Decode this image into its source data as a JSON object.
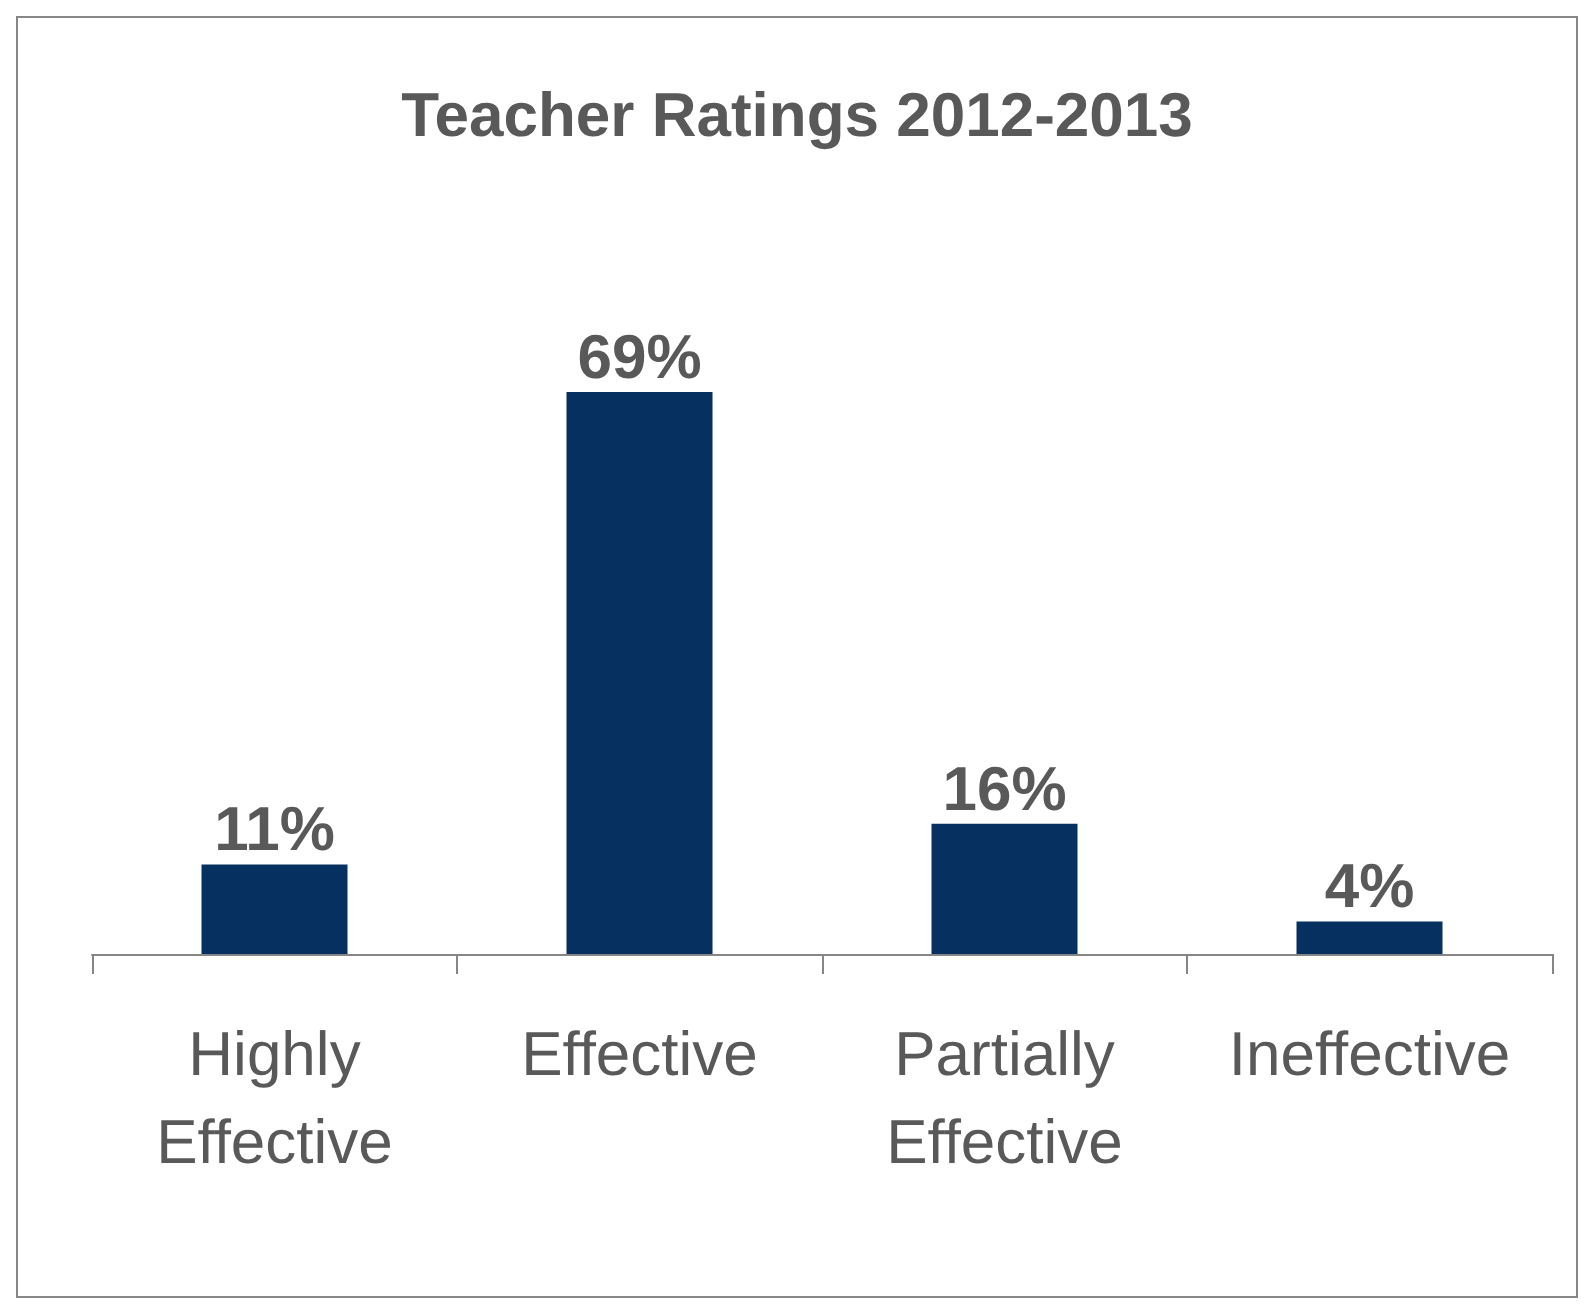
{
  "chart_data": {
    "type": "bar",
    "title": "Teacher Ratings 2012-2013",
    "categories": [
      "Highly\nEffective",
      "Effective",
      "Partially\nEffective",
      "Ineffective"
    ],
    "values": [
      11,
      69,
      16,
      4
    ],
    "value_labels": [
      "11%",
      "69%",
      "16%",
      "4%"
    ],
    "color": "#06305f"
  }
}
